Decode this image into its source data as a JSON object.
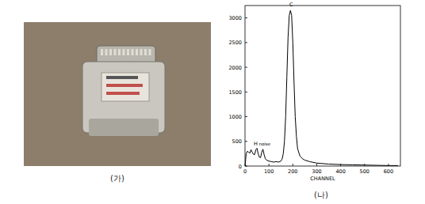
{
  "chart_data": {
    "type": "line",
    "x_label": "CHANNEL",
    "x": [
      0,
      5,
      10,
      15,
      20,
      25,
      30,
      35,
      40,
      45,
      50,
      55,
      60,
      65,
      70,
      75,
      80,
      85,
      90,
      100,
      110,
      120,
      130,
      140,
      150,
      155,
      160,
      165,
      170,
      175,
      180,
      185,
      190,
      195,
      200,
      205,
      210,
      215,
      220,
      230,
      240,
      250,
      270,
      300,
      350,
      400,
      450,
      500,
      550,
      600,
      640
    ],
    "values": [
      0,
      250,
      300,
      280,
      260,
      330,
      280,
      240,
      230,
      330,
      360,
      250,
      180,
      170,
      280,
      340,
      230,
      150,
      120,
      100,
      90,
      80,
      90,
      80,
      100,
      140,
      250,
      500,
      1000,
      1800,
      2600,
      3050,
      3150,
      3050,
      2500,
      1700,
      1000,
      600,
      350,
      200,
      150,
      120,
      90,
      60,
      40,
      30,
      25,
      20,
      15,
      10,
      10
    ],
    "color": "#000000",
    "xlim": [
      0,
      650
    ],
    "xticks": [
      0,
      100,
      200,
      300,
      400,
      500,
      600
    ],
    "ylim": [
      0,
      3250
    ],
    "yticks": [
      0,
      500,
      1000,
      1500,
      2000,
      2500,
      3000
    ],
    "grid": false,
    "annotations": [
      {
        "text": "H",
        "x": 45,
        "y": 420
      },
      {
        "text": "noise",
        "x": 82,
        "y": 420
      },
      {
        "text": "C",
        "x": 193,
        "y": 3230
      }
    ]
  },
  "figure": {
    "panel_labels": [
      "(가)",
      "(나)"
    ]
  }
}
